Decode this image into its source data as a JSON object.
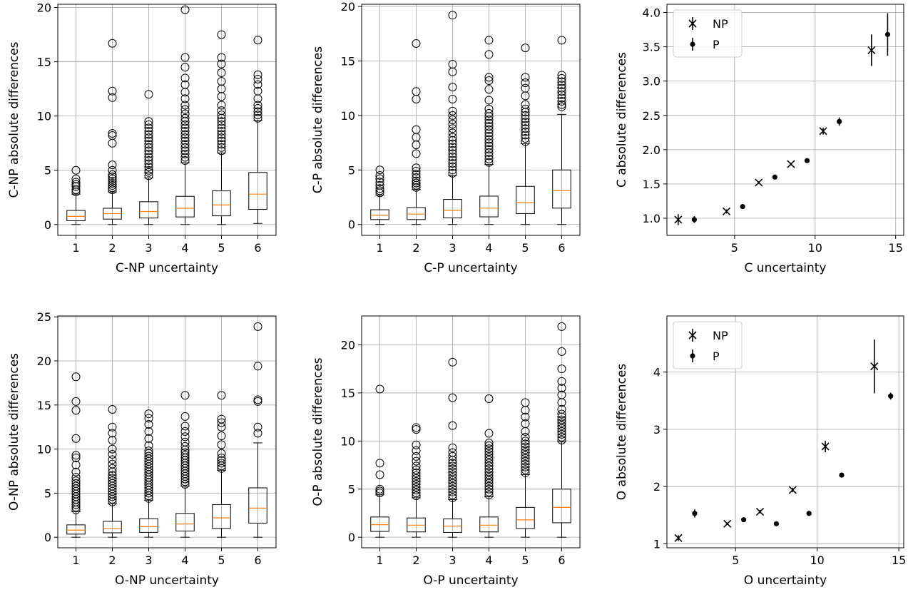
{
  "chart_data": [
    {
      "type": "box",
      "xlabel": "C-NP uncertainty",
      "ylabel": "C-NP absolute differences",
      "ylim": [
        -1,
        20.3
      ],
      "yticks": [
        0,
        5,
        10,
        15,
        20
      ],
      "categories": [
        "1",
        "2",
        "3",
        "4",
        "5",
        "6"
      ],
      "grid": true,
      "boxes": [
        {
          "whislo": 0,
          "q1": 0.35,
          "med": 0.75,
          "q3": 1.3,
          "whishi": 2.8,
          "fliers": [
            3.0,
            3.2,
            3.5,
            3.7,
            3.9,
            4.2,
            5.0
          ]
        },
        {
          "whislo": 0,
          "q1": 0.5,
          "med": 1.0,
          "q3": 1.5,
          "whishi": 3.0,
          "fliers": [
            3.2,
            3.4,
            3.6,
            3.8,
            4.0,
            4.2,
            4.4,
            4.6,
            5.0,
            5.5,
            7.5,
            8.2,
            8.4,
            11.7,
            12.3,
            16.7
          ]
        },
        {
          "whislo": 0,
          "q1": 0.6,
          "med": 1.2,
          "q3": 2.1,
          "whishi": 4.3,
          "fliers": [
            4.5,
            4.8,
            5.0,
            5.3,
            5.6,
            5.9,
            6.2,
            6.5,
            6.8,
            7.1,
            7.4,
            7.7,
            8.0,
            8.3,
            8.6,
            8.9,
            9.2,
            9.5,
            12.0
          ]
        },
        {
          "whislo": 0,
          "q1": 0.7,
          "med": 1.5,
          "q3": 2.6,
          "whishi": 5.7,
          "fliers": [
            5.9,
            6.2,
            6.5,
            6.8,
            7.1,
            7.4,
            7.7,
            8.0,
            8.3,
            8.6,
            8.9,
            9.2,
            9.5,
            9.8,
            10.2,
            10.6,
            11.0,
            11.6,
            12.2,
            12.9,
            13.5,
            14.5,
            15.4,
            19.8
          ]
        },
        {
          "whislo": 0,
          "q1": 0.8,
          "med": 1.8,
          "q3": 3.1,
          "whishi": 6.6,
          "fliers": [
            6.8,
            7.1,
            7.4,
            7.7,
            8.0,
            8.3,
            8.6,
            8.9,
            9.2,
            9.5,
            9.8,
            10.1,
            10.5,
            11.0,
            11.8,
            12.5,
            13.2,
            14.0,
            14.8,
            15.4,
            17.5
          ]
        },
        {
          "whislo": 0.1,
          "q1": 1.4,
          "med": 2.8,
          "q3": 4.8,
          "whishi": 9.6,
          "fliers": [
            9.8,
            10.1,
            10.4,
            10.7,
            11.0,
            11.6,
            12.3,
            12.9,
            13.4,
            13.8,
            17.0
          ]
        }
      ]
    },
    {
      "type": "box",
      "xlabel": "C-P uncertainty",
      "ylabel": "C-P absolute differences",
      "ylim": [
        -1,
        20.2
      ],
      "yticks": [
        0,
        5,
        10,
        15,
        20
      ],
      "categories": [
        "1",
        "2",
        "3",
        "4",
        "5",
        "6"
      ],
      "grid": true,
      "boxes": [
        {
          "whislo": 0,
          "q1": 0.45,
          "med": 0.85,
          "q3": 1.35,
          "whishi": 2.7,
          "fliers": [
            2.9,
            3.1,
            3.3,
            3.6,
            3.9,
            4.2,
            4.5,
            5.0
          ]
        },
        {
          "whislo": 0,
          "q1": 0.45,
          "med": 0.95,
          "q3": 1.55,
          "whishi": 3.2,
          "fliers": [
            3.4,
            3.6,
            3.8,
            4.0,
            4.3,
            4.6,
            4.9,
            5.2,
            6.5,
            7.3,
            8.0,
            8.7,
            11.5,
            12.2,
            16.6
          ]
        },
        {
          "whislo": 0,
          "q1": 0.6,
          "med": 1.3,
          "q3": 2.3,
          "whishi": 4.5,
          "fliers": [
            4.7,
            5.0,
            5.3,
            5.6,
            5.9,
            6.2,
            6.5,
            6.8,
            7.1,
            7.4,
            7.7,
            8.0,
            8.4,
            8.8,
            9.2,
            9.6,
            10.0,
            10.4,
            11.5,
            12.6,
            14.0,
            14.7,
            19.2
          ]
        },
        {
          "whislo": 0,
          "q1": 0.7,
          "med": 1.5,
          "q3": 2.6,
          "whishi": 5.5,
          "fliers": [
            5.7,
            6.0,
            6.3,
            6.6,
            6.9,
            7.2,
            7.5,
            7.8,
            8.1,
            8.4,
            8.7,
            9.0,
            9.3,
            9.6,
            9.9,
            10.2,
            10.6,
            11.4,
            12.4,
            13.2,
            13.5,
            15.6,
            16.9
          ]
        },
        {
          "whislo": 0,
          "q1": 1.0,
          "med": 2.0,
          "q3": 3.5,
          "whishi": 7.4,
          "fliers": [
            7.6,
            7.9,
            8.2,
            8.5,
            8.8,
            9.1,
            9.4,
            9.7,
            10.0,
            10.3,
            10.6,
            11.0,
            11.8,
            12.5,
            13.0,
            13.5,
            16.2
          ]
        },
        {
          "whislo": 0,
          "q1": 1.5,
          "med": 3.1,
          "q3": 5.0,
          "whishi": 10.1,
          "fliers": [
            10.8,
            11.0,
            11.3,
            11.6,
            11.9,
            12.2,
            12.5,
            12.8,
            13.1,
            13.4,
            13.7,
            16.9
          ]
        }
      ]
    },
    {
      "type": "errorbar",
      "xlabel": "C uncertainty",
      "ylabel": "C absolute differences",
      "xlim": [
        0.8,
        15.5
      ],
      "ylim": [
        0.75,
        4.12
      ],
      "xticks": [
        5,
        10,
        15
      ],
      "yticks": [
        "1.0",
        "1.5",
        "2.0",
        "2.5",
        "3.0",
        "3.5",
        "4.0"
      ],
      "grid": true,
      "legend": "top-left",
      "series": [
        {
          "name": "NP",
          "marker": "x",
          "points": [
            {
              "x": 1.5,
              "y": 0.98,
              "err": 0.08
            },
            {
              "x": 4.5,
              "y": 1.1,
              "err": 0.03
            },
            {
              "x": 6.5,
              "y": 1.52,
              "err": 0.02
            },
            {
              "x": 8.5,
              "y": 1.79,
              "err": 0.02
            },
            {
              "x": 10.5,
              "y": 2.27,
              "err": 0.05
            },
            {
              "x": 13.5,
              "y": 3.45,
              "err": 0.23
            }
          ]
        },
        {
          "name": "P",
          "marker": "o",
          "points": [
            {
              "x": 2.5,
              "y": 0.98,
              "err": 0.05
            },
            {
              "x": 5.5,
              "y": 1.17,
              "err": 0.01
            },
            {
              "x": 7.5,
              "y": 1.6,
              "err": 0.02
            },
            {
              "x": 9.5,
              "y": 1.84,
              "err": 0.02
            },
            {
              "x": 11.5,
              "y": 2.41,
              "err": 0.06
            },
            {
              "x": 14.5,
              "y": 3.68,
              "err": 0.31
            }
          ]
        }
      ]
    },
    {
      "type": "box",
      "xlabel": "O-NP uncertainty",
      "ylabel": "O-NP absolute differences",
      "ylim": [
        -1.2,
        25.1
      ],
      "yticks": [
        0,
        5,
        10,
        15,
        20,
        25
      ],
      "categories": [
        "1",
        "2",
        "3",
        "4",
        "5",
        "6"
      ],
      "grid": true,
      "boxes": [
        {
          "whislo": 0,
          "q1": 0.35,
          "med": 0.8,
          "q3": 1.4,
          "whishi": 2.9,
          "fliers": [
            3.1,
            3.4,
            3.7,
            4.0,
            4.3,
            4.6,
            4.9,
            5.2,
            5.5,
            5.8,
            6.1,
            6.4,
            6.8,
            7.4,
            8.2,
            9.0,
            9.3,
            11.2,
            14.4,
            15.4,
            18.2
          ]
        },
        {
          "whislo": 0,
          "q1": 0.5,
          "med": 1.0,
          "q3": 1.8,
          "whishi": 3.8,
          "fliers": [
            4.0,
            4.3,
            4.6,
            4.9,
            5.2,
            5.5,
            5.8,
            6.1,
            6.4,
            6.7,
            7.0,
            7.4,
            7.8,
            8.3,
            8.8,
            9.4,
            10.0,
            11.0,
            11.8,
            12.5,
            14.5
          ]
        },
        {
          "whislo": 0,
          "q1": 0.55,
          "med": 1.2,
          "q3": 2.1,
          "whishi": 4.2,
          "fliers": [
            4.4,
            4.7,
            5.0,
            5.3,
            5.6,
            5.9,
            6.2,
            6.5,
            6.8,
            7.1,
            7.4,
            7.7,
            8.0,
            8.3,
            8.6,
            8.9,
            9.2,
            9.5,
            9.8,
            10.4,
            11.2,
            12.0,
            12.8,
            13.5,
            14.0
          ]
        },
        {
          "whislo": 0,
          "q1": 0.7,
          "med": 1.5,
          "q3": 2.7,
          "whishi": 5.8,
          "fliers": [
            6.0,
            6.3,
            6.6,
            6.9,
            7.2,
            7.5,
            7.8,
            8.1,
            8.4,
            8.7,
            9.0,
            9.3,
            9.6,
            9.9,
            10.3,
            10.8,
            11.4,
            12.0,
            12.6,
            13.7,
            16.1
          ]
        },
        {
          "whislo": 0,
          "q1": 1.0,
          "med": 2.2,
          "q3": 3.7,
          "whishi": 7.6,
          "fliers": [
            7.8,
            8.1,
            8.4,
            8.7,
            9.0,
            9.5,
            10.5,
            11.5,
            12.5,
            13.0,
            13.4,
            16.1
          ]
        },
        {
          "whislo": 0,
          "q1": 1.6,
          "med": 3.3,
          "q3": 5.6,
          "whishi": 10.7,
          "fliers": [
            11.8,
            12.5,
            15.4,
            15.6,
            19.4,
            23.9
          ]
        }
      ]
    },
    {
      "type": "box",
      "xlabel": "O-P uncertainty",
      "ylabel": "O-P absolute differences",
      "ylim": [
        -1.1,
        23
      ],
      "yticks": [
        0,
        5,
        10,
        15,
        20
      ],
      "categories": [
        "1",
        "2",
        "3",
        "4",
        "5",
        "6"
      ],
      "grid": true,
      "boxes": [
        {
          "whislo": 0,
          "q1": 0.6,
          "med": 1.3,
          "q3": 2.1,
          "whishi": 4.4,
          "fliers": [
            4.6,
            4.8,
            5.0,
            6.5,
            7.7,
            15.4
          ]
        },
        {
          "whislo": 0,
          "q1": 0.55,
          "med": 1.25,
          "q3": 2.0,
          "whishi": 4.1,
          "fliers": [
            4.3,
            4.6,
            4.9,
            5.2,
            5.5,
            5.8,
            6.1,
            6.4,
            6.7,
            7.0,
            7.4,
            7.9,
            8.4,
            9.0,
            9.6,
            11.2,
            11.4
          ]
        },
        {
          "whislo": 0,
          "q1": 0.5,
          "med": 1.15,
          "q3": 1.9,
          "whishi": 3.9,
          "fliers": [
            4.1,
            4.4,
            4.7,
            5.0,
            5.3,
            5.6,
            5.9,
            6.2,
            6.5,
            6.8,
            7.1,
            7.4,
            7.7,
            8.0,
            8.4,
            8.8,
            9.3,
            11.6,
            14.5,
            18.2
          ]
        },
        {
          "whislo": 0,
          "q1": 0.55,
          "med": 1.25,
          "q3": 2.1,
          "whishi": 4.2,
          "fliers": [
            4.4,
            4.7,
            5.0,
            5.3,
            5.6,
            5.9,
            6.2,
            6.5,
            6.8,
            7.1,
            7.4,
            7.7,
            8.0,
            8.3,
            8.6,
            8.9,
            9.2,
            9.5,
            9.8,
            10.8,
            14.4
          ]
        },
        {
          "whislo": 0,
          "q1": 0.9,
          "med": 1.8,
          "q3": 3.1,
          "whishi": 6.5,
          "fliers": [
            6.7,
            7.0,
            7.3,
            7.6,
            7.9,
            8.2,
            8.5,
            8.8,
            9.1,
            9.4,
            9.7,
            10.0,
            10.4,
            11.0,
            11.8,
            12.5,
            13.2,
            14.0
          ]
        },
        {
          "whislo": 0,
          "q1": 1.5,
          "med": 3.1,
          "q3": 5.0,
          "whishi": 9.9,
          "fliers": [
            10.1,
            10.4,
            10.7,
            11.0,
            11.3,
            11.6,
            11.9,
            12.2,
            12.5,
            12.8,
            13.3,
            14.0,
            14.8,
            15.5,
            16.2,
            17.5,
            19.3,
            21.9
          ]
        }
      ]
    },
    {
      "type": "errorbar",
      "xlabel": "O uncertainty",
      "ylabel": "O absolute differences",
      "xlim": [
        0.8,
        15.3
      ],
      "ylim": [
        0.93,
        4.98
      ],
      "xticks": [
        5,
        10,
        15
      ],
      "yticks": [
        "1",
        "2",
        "3",
        "4"
      ],
      "grid": true,
      "legend": "top-left",
      "series": [
        {
          "name": "NP",
          "marker": "x",
          "points": [
            {
              "x": 1.5,
              "y": 1.1,
              "err": 0.05
            },
            {
              "x": 4.5,
              "y": 1.35,
              "err": 0.02
            },
            {
              "x": 6.5,
              "y": 1.56,
              "err": 0.03
            },
            {
              "x": 8.5,
              "y": 1.94,
              "err": 0.04
            },
            {
              "x": 10.5,
              "y": 2.7,
              "err": 0.1
            },
            {
              "x": 13.5,
              "y": 4.1,
              "err": 0.47
            }
          ]
        },
        {
          "name": "P",
          "marker": "o",
          "points": [
            {
              "x": 2.5,
              "y": 1.53,
              "err": 0.07
            },
            {
              "x": 5.5,
              "y": 1.42,
              "err": 0.02
            },
            {
              "x": 7.5,
              "y": 1.35,
              "err": 0.02
            },
            {
              "x": 9.5,
              "y": 1.53,
              "err": 0.02
            },
            {
              "x": 11.5,
              "y": 2.2,
              "err": 0.02
            },
            {
              "x": 14.5,
              "y": 3.58,
              "err": 0.06
            }
          ]
        }
      ]
    }
  ],
  "colors": {
    "box": "#000000",
    "median": "#ff7f0e",
    "grid": "#b0b0b0",
    "marker": "#000000"
  }
}
